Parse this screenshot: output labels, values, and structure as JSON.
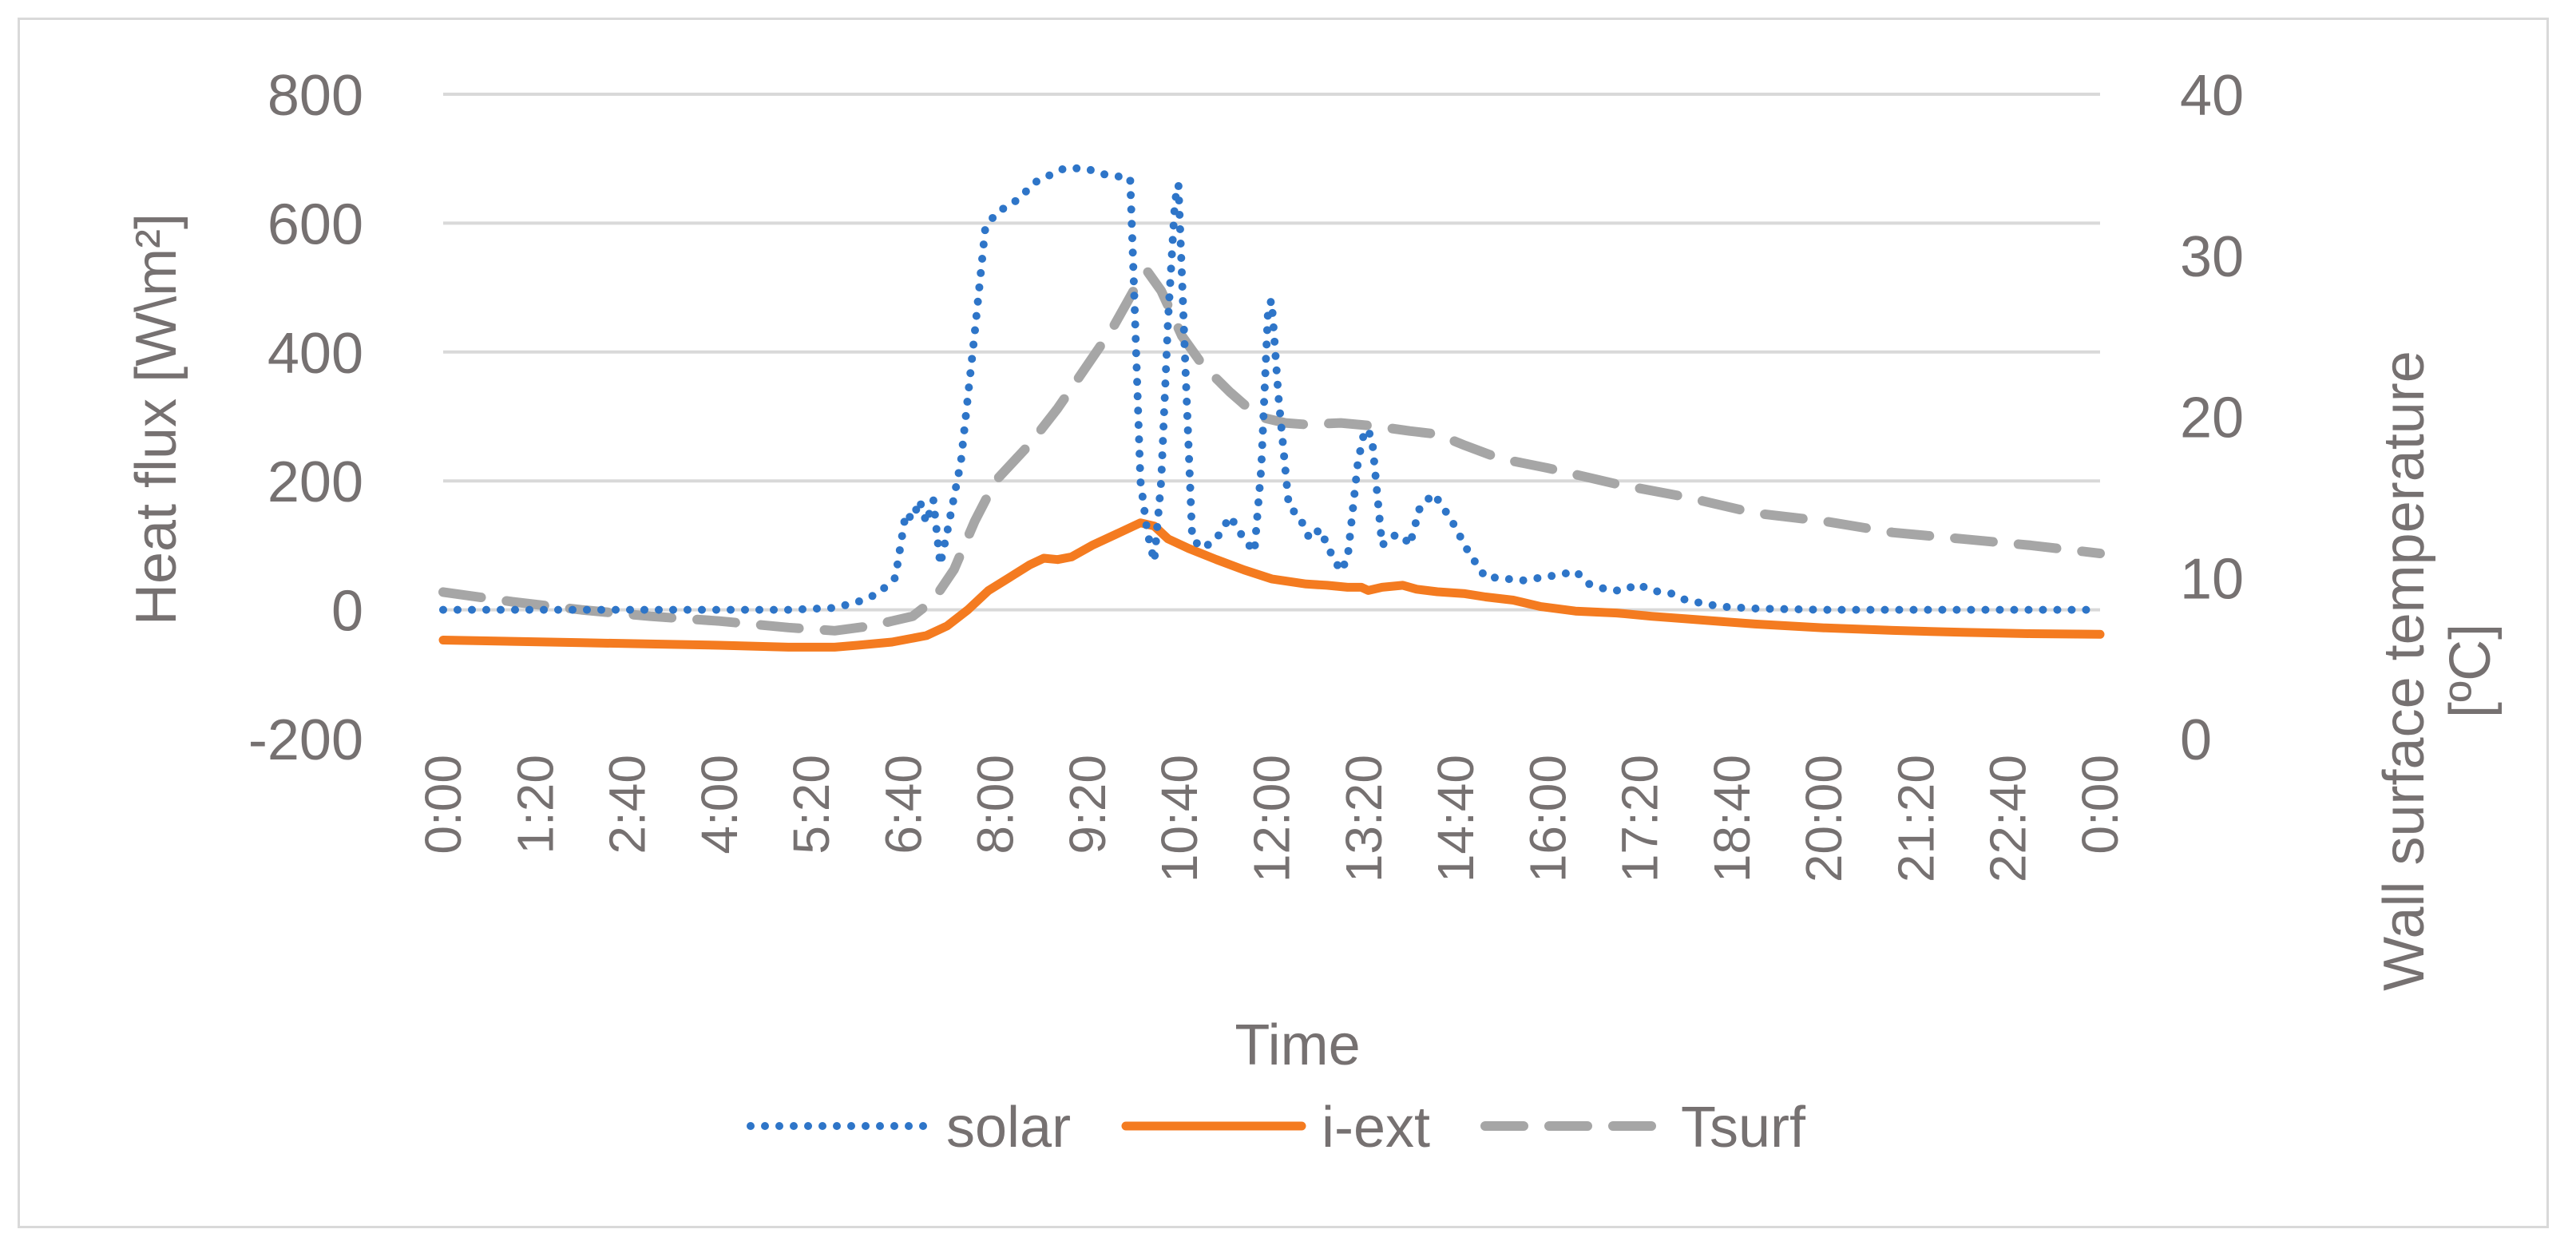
{
  "chart_data": {
    "type": "line",
    "xlabel": "Time",
    "ylabel_left": "Heat flux [W\\m²]",
    "ylabel_right_line1": "Wall surface temperature",
    "ylabel_right_line2": "[ºC]",
    "left_axis": {
      "min": -200,
      "max": 800,
      "step": 200,
      "ticks": [
        "-200",
        "0",
        "200",
        "400",
        "600",
        "800"
      ]
    },
    "right_axis": {
      "min": 0,
      "max": 40,
      "step": 10,
      "ticks": [
        "0",
        "10",
        "20",
        "30",
        "40"
      ]
    },
    "x_axis": {
      "min": 0,
      "max": 24,
      "ticks": [
        "0:00",
        "1:20",
        "2:40",
        "4:00",
        "5:20",
        "6:40",
        "8:00",
        "9:20",
        "10:40",
        "12:00",
        "13:20",
        "14:40",
        "16:00",
        "17:20",
        "18:40",
        "20:00",
        "21:20",
        "22:40",
        "0:00"
      ]
    },
    "grid": true,
    "legend": "bottom",
    "series": [
      {
        "name": "solar",
        "axis": "left",
        "color": "#2E75C8",
        "style": "dotted",
        "points": [
          [
            0,
            0
          ],
          [
            1,
            0
          ],
          [
            2,
            0
          ],
          [
            3,
            0
          ],
          [
            4,
            0
          ],
          [
            5,
            0
          ],
          [
            5.67,
            3
          ],
          [
            6,
            12
          ],
          [
            6.3,
            25
          ],
          [
            6.55,
            50
          ],
          [
            6.7,
            150
          ],
          [
            6.8,
            140
          ],
          [
            6.9,
            170
          ],
          [
            7.0,
            135
          ],
          [
            7.1,
            170
          ],
          [
            7.2,
            70
          ],
          [
            7.3,
            120
          ],
          [
            7.5,
            230
          ],
          [
            7.7,
            430
          ],
          [
            7.85,
            590
          ],
          [
            8.0,
            615
          ],
          [
            8.3,
            635
          ],
          [
            8.6,
            665
          ],
          [
            9.0,
            685
          ],
          [
            9.3,
            685
          ],
          [
            9.6,
            675
          ],
          [
            9.95,
            670
          ],
          [
            10.0,
            520
          ],
          [
            10.1,
            200
          ],
          [
            10.2,
            120
          ],
          [
            10.3,
            75
          ],
          [
            10.4,
            200
          ],
          [
            10.5,
            450
          ],
          [
            10.6,
            635
          ],
          [
            10.65,
            660
          ],
          [
            10.75,
            380
          ],
          [
            10.85,
            110
          ],
          [
            11.0,
            95
          ],
          [
            11.2,
            110
          ],
          [
            11.4,
            145
          ],
          [
            11.6,
            110
          ],
          [
            11.75,
            90
          ],
          [
            11.85,
            220
          ],
          [
            11.95,
            470
          ],
          [
            12.0,
            480
          ],
          [
            12.1,
            330
          ],
          [
            12.25,
            160
          ],
          [
            12.4,
            145
          ],
          [
            12.55,
            110
          ],
          [
            12.7,
            125
          ],
          [
            12.85,
            90
          ],
          [
            13.0,
            60
          ],
          [
            13.1,
            80
          ],
          [
            13.25,
            230
          ],
          [
            13.35,
            280
          ],
          [
            13.45,
            270
          ],
          [
            13.6,
            100
          ],
          [
            13.75,
            115
          ],
          [
            13.9,
            115
          ],
          [
            14.0,
            100
          ],
          [
            14.15,
            160
          ],
          [
            14.35,
            180
          ],
          [
            14.6,
            140
          ],
          [
            14.85,
            90
          ],
          [
            15.1,
            50
          ],
          [
            15.3,
            50
          ],
          [
            15.6,
            45
          ],
          [
            15.9,
            50
          ],
          [
            16.2,
            55
          ],
          [
            16.4,
            60
          ],
          [
            16.6,
            40
          ],
          [
            16.9,
            30
          ],
          [
            17.1,
            30
          ],
          [
            17.3,
            40
          ],
          [
            17.5,
            30
          ],
          [
            17.8,
            25
          ],
          [
            18.0,
            15
          ],
          [
            18.5,
            5
          ],
          [
            19,
            2
          ],
          [
            20,
            0
          ],
          [
            21,
            0
          ],
          [
            22,
            0
          ],
          [
            23,
            0
          ],
          [
            24,
            0
          ]
        ]
      },
      {
        "name": "i-ext",
        "axis": "left",
        "color": "#F47B20",
        "style": "solid",
        "points": [
          [
            0,
            -47
          ],
          [
            1,
            -49
          ],
          [
            2,
            -51
          ],
          [
            3,
            -53
          ],
          [
            4,
            -55
          ],
          [
            5,
            -58
          ],
          [
            5.67,
            -58
          ],
          [
            6,
            -55
          ],
          [
            6.5,
            -50
          ],
          [
            7.0,
            -40
          ],
          [
            7.3,
            -25
          ],
          [
            7.6,
            0
          ],
          [
            7.9,
            30
          ],
          [
            8.2,
            50
          ],
          [
            8.5,
            70
          ],
          [
            8.7,
            80
          ],
          [
            8.9,
            78
          ],
          [
            9.1,
            82
          ],
          [
            9.4,
            100
          ],
          [
            9.8,
            120
          ],
          [
            10.1,
            135
          ],
          [
            10.3,
            130
          ],
          [
            10.5,
            110
          ],
          [
            10.8,
            95
          ],
          [
            11.2,
            78
          ],
          [
            11.6,
            62
          ],
          [
            12.0,
            48
          ],
          [
            12.5,
            40
          ],
          [
            12.8,
            38
          ],
          [
            13.1,
            35
          ],
          [
            13.3,
            35
          ],
          [
            13.4,
            30
          ],
          [
            13.6,
            35
          ],
          [
            13.9,
            38
          ],
          [
            14.1,
            32
          ],
          [
            14.4,
            28
          ],
          [
            14.8,
            25
          ],
          [
            15.1,
            20
          ],
          [
            15.5,
            15
          ],
          [
            15.9,
            5
          ],
          [
            16.4,
            -2
          ],
          [
            17.0,
            -5
          ],
          [
            17.5,
            -10
          ],
          [
            18.0,
            -14
          ],
          [
            19.0,
            -22
          ],
          [
            20.0,
            -28
          ],
          [
            21.0,
            -32
          ],
          [
            22.0,
            -35
          ],
          [
            23.0,
            -37
          ],
          [
            24.0,
            -38
          ]
        ]
      },
      {
        "name": "Tsurf",
        "axis": "right",
        "color": "#A6A6A6",
        "style": "dashed",
        "points": [
          [
            0,
            9.1
          ],
          [
            1,
            8.5
          ],
          [
            2,
            8.0
          ],
          [
            3,
            7.6
          ],
          [
            4,
            7.3
          ],
          [
            5,
            6.9
          ],
          [
            5.67,
            6.7
          ],
          [
            6.2,
            7.0
          ],
          [
            6.5,
            7.3
          ],
          [
            6.8,
            7.6
          ],
          [
            7.1,
            8.6
          ],
          [
            7.4,
            10.5
          ],
          [
            7.7,
            13.5
          ],
          [
            8.0,
            16.0
          ],
          [
            8.5,
            18.3
          ],
          [
            8.9,
            20.5
          ],
          [
            9.3,
            23.0
          ],
          [
            9.7,
            25.5
          ],
          [
            10.0,
            27.8
          ],
          [
            10.2,
            29.0
          ],
          [
            10.4,
            27.8
          ],
          [
            10.7,
            25.0
          ],
          [
            11.0,
            23.2
          ],
          [
            11.4,
            21.5
          ],
          [
            11.8,
            20.0
          ],
          [
            12.2,
            19.6
          ],
          [
            12.5,
            19.5
          ],
          [
            13.0,
            19.6
          ],
          [
            13.5,
            19.4
          ],
          [
            14.0,
            19.1
          ],
          [
            14.4,
            18.9
          ],
          [
            14.8,
            18.2
          ],
          [
            15.3,
            17.4
          ],
          [
            16.0,
            16.8
          ],
          [
            17.0,
            15.8
          ],
          [
            18.0,
            15.0
          ],
          [
            19.0,
            14.0
          ],
          [
            20.0,
            13.5
          ],
          [
            21.0,
            12.8
          ],
          [
            22.0,
            12.4
          ],
          [
            23.0,
            12.0
          ],
          [
            24.0,
            11.5
          ]
        ]
      }
    ]
  }
}
